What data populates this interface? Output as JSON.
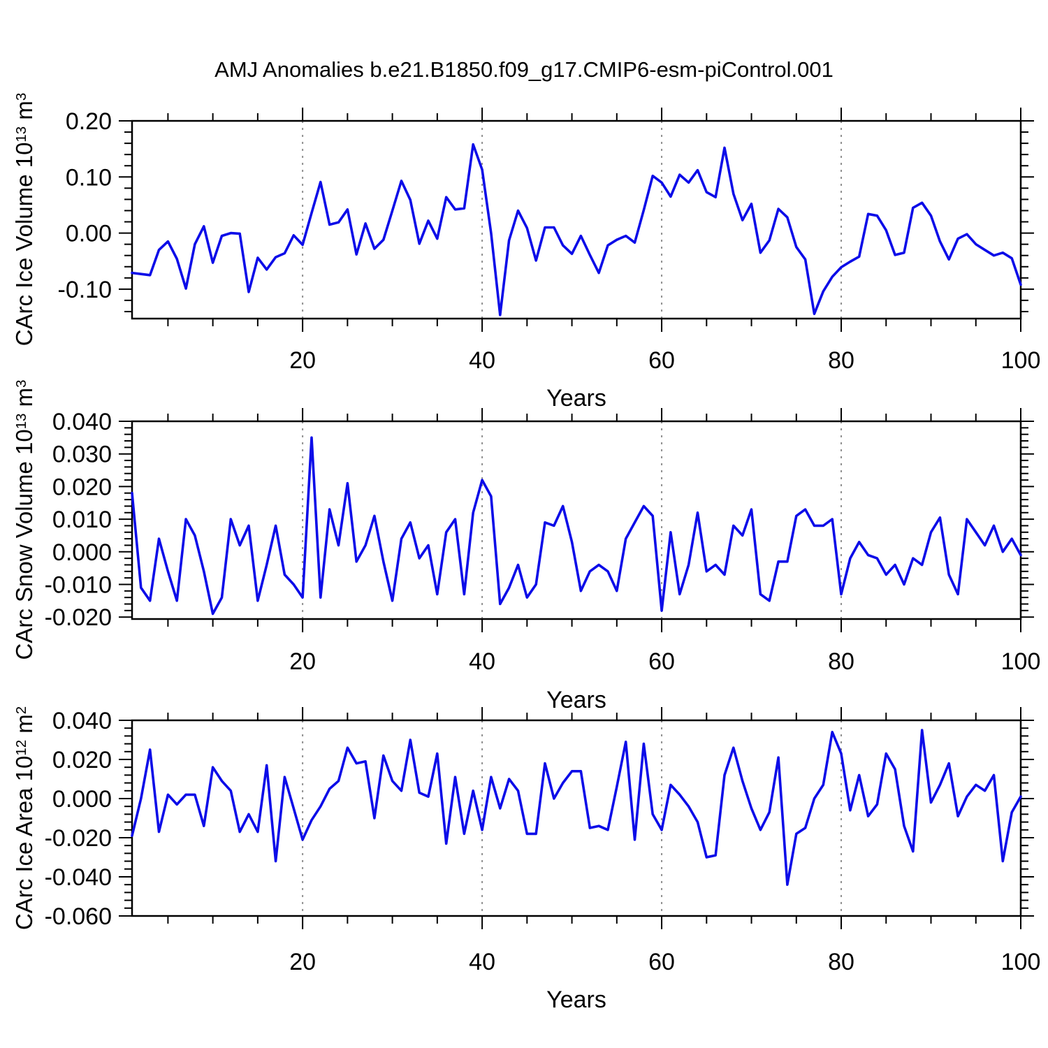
{
  "title": "AMJ Anomalies b.e21.B1850.f09_g17.CMIP6-esm-piControl.001",
  "x_axis": {
    "label": "Years",
    "ticks": [
      "20",
      "40",
      "60",
      "80",
      "100"
    ],
    "tick_values": [
      20,
      40,
      60,
      80,
      100
    ],
    "minor_step": 5,
    "range": [
      1,
      100
    ],
    "gridline_values": [
      20,
      40,
      60,
      80
    ]
  },
  "colors": {
    "line": "#0C0CE8",
    "frame": "#000000",
    "grid": "#909090",
    "background": "#ffffff"
  },
  "chart_data": [
    {
      "type": "line",
      "series_name": "CArc Ice Volume anomaly",
      "ylabel_text": "CArc Ice Volume 10^13 m^3",
      "ylabel_parts": {
        "base": "CArc Ice Volume 10",
        "exp": "13",
        "unit": " m",
        "unit_exp": "3"
      },
      "xlabel": "Years",
      "x_start": 1,
      "x_end": 100,
      "ylim": [
        -0.1525,
        0.2
      ],
      "ytick_labels": [
        "0.20",
        "0.10",
        "0.00",
        "-0.10"
      ],
      "ytick_values": [
        0.2,
        0.1,
        0.0,
        -0.1
      ],
      "y_minor_step": 0.02,
      "grid": "x-dashed",
      "legend": "none",
      "values": [
        -0.071,
        -0.073,
        -0.075,
        -0.03,
        -0.015,
        -0.046,
        -0.099,
        -0.02,
        0.012,
        -0.053,
        -0.005,
        0.0,
        -0.001,
        -0.105,
        -0.044,
        -0.065,
        -0.043,
        -0.036,
        -0.004,
        -0.021,
        0.036,
        0.091,
        0.015,
        0.019,
        0.042,
        -0.038,
        0.017,
        -0.028,
        -0.012,
        0.04,
        0.093,
        0.059,
        -0.019,
        0.022,
        -0.01,
        0.064,
        0.042,
        0.044,
        0.158,
        0.113,
        0.0,
        -0.146,
        -0.013,
        0.04,
        0.009,
        -0.049,
        0.01,
        0.01,
        -0.022,
        -0.037,
        -0.005,
        -0.039,
        -0.071,
        -0.022,
        -0.012,
        -0.005,
        -0.017,
        0.041,
        0.102,
        0.09,
        0.065,
        0.104,
        0.09,
        0.112,
        0.073,
        0.064,
        0.152,
        0.07,
        0.023,
        0.052,
        -0.035,
        -0.013,
        0.043,
        0.028,
        -0.025,
        -0.047,
        -0.144,
        -0.104,
        -0.078,
        -0.061,
        -0.051,
        -0.042,
        0.034,
        0.031,
        0.005,
        -0.039,
        -0.035,
        0.045,
        0.054,
        0.031,
        -0.015,
        -0.047,
        -0.01,
        -0.002,
        -0.02,
        -0.03,
        -0.04,
        -0.035,
        -0.045,
        -0.092
      ]
    },
    {
      "type": "line",
      "series_name": "CArc Snow Volume anomaly",
      "ylabel_text": "CArc Snow Volume 10^13 m^3",
      "ylabel_parts": {
        "base": "CArc Snow Volume 10",
        "exp": "13",
        "unit": " m",
        "unit_exp": "3"
      },
      "xlabel": "Years",
      "x_start": 1,
      "x_end": 100,
      "ylim": [
        -0.0206,
        0.04
      ],
      "ytick_labels": [
        "0.040",
        "0.030",
        "0.020",
        "0.010",
        "0.000",
        "-0.010",
        "-0.020"
      ],
      "ytick_values": [
        0.04,
        0.03,
        0.02,
        0.01,
        0.0,
        -0.01,
        -0.02
      ],
      "y_minor_step": 0.002,
      "grid": "x-dashed",
      "legend": "none",
      "values": [
        0.018,
        -0.011,
        -0.015,
        0.004,
        -0.006,
        -0.015,
        0.01,
        0.005,
        -0.006,
        -0.019,
        -0.014,
        0.01,
        0.002,
        0.008,
        -0.015,
        -0.004,
        0.008,
        -0.007,
        -0.01,
        -0.014,
        0.035,
        -0.014,
        0.013,
        0.002,
        0.021,
        -0.003,
        0.002,
        0.011,
        -0.003,
        -0.015,
        0.004,
        0.009,
        -0.002,
        0.002,
        -0.013,
        0.006,
        0.01,
        -0.013,
        0.012,
        0.022,
        0.017,
        -0.016,
        -0.011,
        -0.004,
        -0.014,
        -0.01,
        0.009,
        0.008,
        0.014,
        0.003,
        -0.012,
        -0.006,
        -0.004,
        -0.006,
        -0.012,
        0.004,
        0.009,
        0.014,
        0.011,
        -0.018,
        0.006,
        -0.013,
        -0.004,
        0.012,
        -0.006,
        -0.004,
        -0.007,
        0.008,
        0.005,
        0.013,
        -0.013,
        -0.015,
        -0.003,
        -0.003,
        0.011,
        0.013,
        0.008,
        0.008,
        0.01,
        -0.013,
        -0.002,
        0.003,
        -0.001,
        -0.002,
        -0.007,
        -0.004,
        -0.01,
        -0.002,
        -0.004,
        0.006,
        0.0105,
        -0.007,
        -0.013,
        0.01,
        0.006,
        0.002,
        0.008,
        0.0,
        0.004,
        -0.001
      ]
    },
    {
      "type": "line",
      "series_name": "CArc Ice Area anomaly",
      "ylabel_text": "CArc Ice Area 10^12 m^2",
      "ylabel_parts": {
        "base": "CArc Ice Area 10",
        "exp": "12",
        "unit": " m",
        "unit_exp": "2"
      },
      "xlabel": "Years",
      "x_start": 1,
      "x_end": 100,
      "ylim": [
        -0.06,
        0.04
      ],
      "ytick_labels": [
        "0.040",
        "0.020",
        "0.000",
        "-0.020",
        "-0.040",
        "-0.060"
      ],
      "ytick_values": [
        0.04,
        0.02,
        0.0,
        -0.02,
        -0.04,
        -0.06
      ],
      "y_minor_step": 0.004,
      "grid": "x-dashed",
      "legend": "none",
      "values": [
        -0.019,
        0.0,
        0.025,
        -0.017,
        0.002,
        -0.003,
        0.002,
        0.002,
        -0.014,
        0.016,
        0.009,
        0.004,
        -0.017,
        -0.008,
        -0.017,
        0.017,
        -0.032,
        0.011,
        -0.005,
        -0.021,
        -0.011,
        -0.004,
        0.005,
        0.009,
        0.026,
        0.018,
        0.019,
        -0.01,
        0.022,
        0.009,
        0.004,
        0.03,
        0.003,
        0.001,
        0.023,
        -0.023,
        0.011,
        -0.018,
        0.004,
        -0.016,
        0.011,
        -0.005,
        0.01,
        0.004,
        -0.018,
        -0.018,
        0.018,
        0.0,
        0.008,
        0.014,
        0.014,
        -0.015,
        -0.014,
        -0.016,
        0.006,
        0.029,
        -0.021,
        0.028,
        -0.008,
        -0.016,
        0.007,
        0.002,
        -0.004,
        -0.012,
        -0.03,
        -0.029,
        0.012,
        0.026,
        0.009,
        -0.005,
        -0.016,
        -0.007,
        0.021,
        -0.044,
        -0.018,
        -0.015,
        0.0,
        0.007,
        0.034,
        0.023,
        -0.006,
        0.012,
        -0.009,
        -0.003,
        0.023,
        0.015,
        -0.014,
        -0.027,
        0.035,
        -0.002,
        0.007,
        0.018,
        -0.009,
        0.001,
        0.007,
        0.004,
        0.012,
        -0.032,
        -0.007,
        0.001
      ]
    }
  ]
}
